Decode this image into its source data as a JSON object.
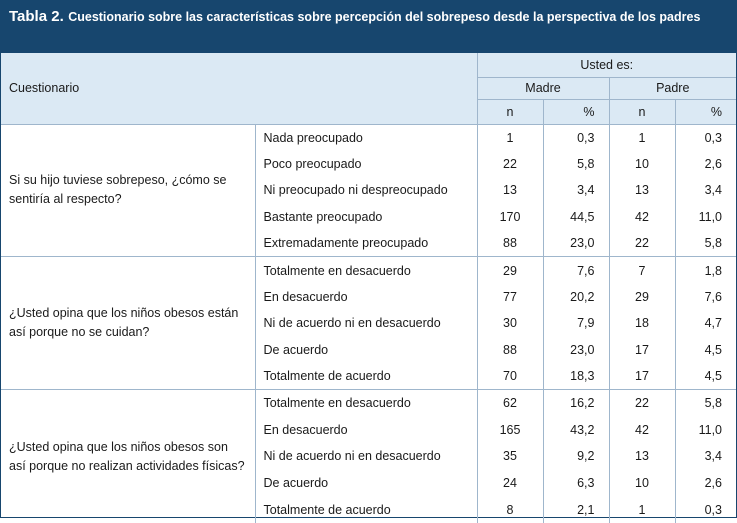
{
  "title": {
    "label": "Tabla 2.",
    "text": "Cuestionario sobre las características sobre percepción del sobrepeso desde la perspectiva de los padres"
  },
  "header": {
    "cuestionario": "Cuestionario",
    "usted_es": "Usted es:",
    "madre": "Madre",
    "padre": "Padre",
    "n": "n",
    "pct": "%"
  },
  "questions": [
    {
      "question": "Si su hijo tuviese sobrepeso, ¿cómo se sentiría al respecto?",
      "rows": [
        {
          "answer": "Nada preocupado",
          "madre_n": "1",
          "madre_pct": "0,3",
          "padre_n": "1",
          "padre_pct": "0,3"
        },
        {
          "answer": "Poco preocupado",
          "madre_n": "22",
          "madre_pct": "5,8",
          "padre_n": "10",
          "padre_pct": "2,6"
        },
        {
          "answer": "Ni preocupado ni despreocupado",
          "madre_n": "13",
          "madre_pct": "3,4",
          "padre_n": "13",
          "padre_pct": "3,4"
        },
        {
          "answer": "Bastante preocupado",
          "madre_n": "170",
          "madre_pct": "44,5",
          "padre_n": "42",
          "padre_pct": "11,0"
        },
        {
          "answer": "Extremadamente preocupado",
          "madre_n": "88",
          "madre_pct": "23,0",
          "padre_n": "22",
          "padre_pct": "5,8"
        }
      ]
    },
    {
      "question": "¿Usted opina que los niños obesos están así porque no se cuidan?",
      "rows": [
        {
          "answer": "Totalmente en desacuerdo",
          "madre_n": "29",
          "madre_pct": "7,6",
          "padre_n": "7",
          "padre_pct": "1,8"
        },
        {
          "answer": "En desacuerdo",
          "madre_n": "77",
          "madre_pct": "20,2",
          "padre_n": "29",
          "padre_pct": "7,6"
        },
        {
          "answer": "Ni de acuerdo ni en desacuerdo",
          "madre_n": "30",
          "madre_pct": "7,9",
          "padre_n": "18",
          "padre_pct": "4,7"
        },
        {
          "answer": "De acuerdo",
          "madre_n": "88",
          "madre_pct": "23,0",
          "padre_n": "17",
          "padre_pct": "4,5"
        },
        {
          "answer": "Totalmente de acuerdo",
          "madre_n": "70",
          "madre_pct": "18,3",
          "padre_n": "17",
          "padre_pct": "4,5"
        }
      ]
    },
    {
      "question": "¿Usted opina que los niños obesos son así porque no realizan actividades físicas?",
      "rows": [
        {
          "answer": "Totalmente en desacuerdo",
          "madre_n": "62",
          "madre_pct": "16,2",
          "padre_n": "22",
          "padre_pct": "5,8"
        },
        {
          "answer": "En desacuerdo",
          "madre_n": "165",
          "madre_pct": "43,2",
          "padre_n": "42",
          "padre_pct": "11,0"
        },
        {
          "answer": "Ni de acuerdo ni en desacuerdo",
          "madre_n": "35",
          "madre_pct": "9,2",
          "padre_n": "13",
          "padre_pct": "3,4"
        },
        {
          "answer": "De acuerdo",
          "madre_n": "24",
          "madre_pct": "6,3",
          "padre_n": "10",
          "padre_pct": "2,6"
        },
        {
          "answer": "Totalmente de acuerdo",
          "madre_n": "8",
          "madre_pct": "2,1",
          "padre_n": "1",
          "padre_pct": "0,3"
        }
      ]
    }
  ]
}
